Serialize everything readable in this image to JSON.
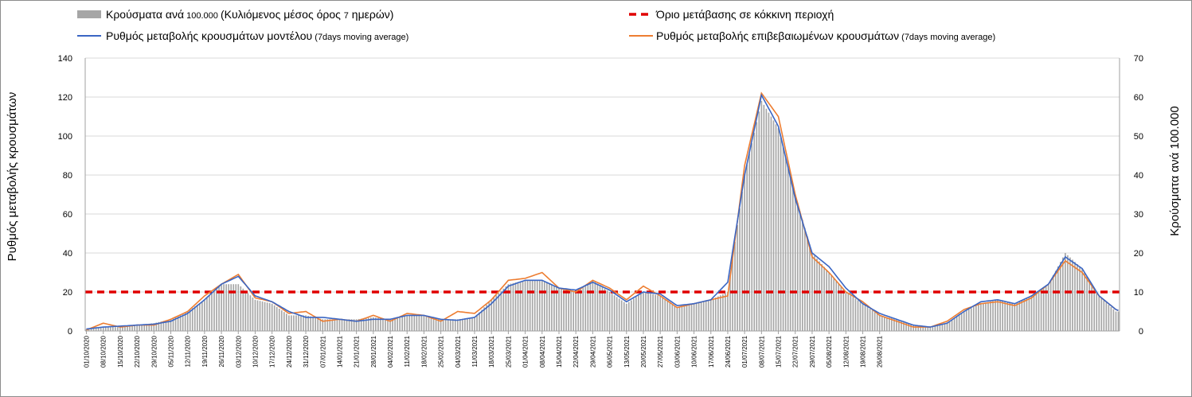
{
  "chart_data": {
    "type": "bar+line",
    "legend": [
      {
        "key": "bars",
        "label": "Κρούσματα ανά",
        "small": " 100.000 ",
        "label2": "(Κυλιόμενος μέσος όρος ",
        "small2": "7",
        "label3": " ημερών)",
        "color": "#a6a6a6"
      },
      {
        "key": "threshold",
        "label": "Όριο μετάβασης σε κόκκινη περιοχή",
        "color": "#e00000"
      },
      {
        "key": "model",
        "label": "Ρυθμός μεταβολής κρουσμάτων μοντέλου",
        "small": " (7days moving average)",
        "color": "#3a66c4"
      },
      {
        "key": "confirmed",
        "label": "Ρυθμός μεταβολής επιβεβαιωμένων κρουσμάτων",
        "small": " (7days moving average)",
        "color": "#ed7d31"
      }
    ],
    "ylabel_left": "Ρυθμός μεταβολής κρουσμάτων",
    "ylabel_right": "Κρούσματα ανά 100.000",
    "ylim_left": [
      0,
      140
    ],
    "ylim_right": [
      0,
      70
    ],
    "yticks_left": [
      "0",
      "20",
      "40",
      "60",
      "80",
      "100",
      "120",
      "140"
    ],
    "yticks_right": [
      "0",
      "10",
      "20",
      "30",
      "40",
      "50",
      "60",
      "70"
    ],
    "threshold_left": 20,
    "start_date": "2020-10-01",
    "days": 365,
    "x_tick_labels": [
      "01/10/2020",
      "08/10/2020",
      "15/10/2020",
      "22/10/2020",
      "29/10/2020",
      "05/11/2020",
      "12/11/2020",
      "19/11/2020",
      "26/11/2020",
      "03/12/2020",
      "10/12/2020",
      "17/12/2020",
      "24/12/2020",
      "31/12/2020",
      "07/01/2021",
      "14/01/2021",
      "21/01/2021",
      "28/01/2021",
      "04/02/2021",
      "11/02/2021",
      "18/02/2021",
      "25/02/2021",
      "04/03/2021",
      "11/03/2021",
      "18/03/2021",
      "25/03/2021",
      "01/04/2021",
      "08/04/2021",
      "15/04/2021",
      "22/04/2021",
      "29/04/2021",
      "06/05/2021",
      "13/05/2021",
      "20/05/2021",
      "27/05/2021",
      "03/06/2021",
      "10/06/2021",
      "17/06/2021",
      "24/06/2021",
      "01/07/2021",
      "08/07/2021",
      "15/07/2021",
      "22/07/2021",
      "29/07/2021",
      "05/08/2021",
      "12/08/2021",
      "19/08/2021",
      "26/08/2021"
    ],
    "model_keypoints": [
      [
        0,
        1
      ],
      [
        7,
        2
      ],
      [
        14,
        2.5
      ],
      [
        21,
        3
      ],
      [
        28,
        3.5
      ],
      [
        35,
        5
      ],
      [
        42,
        9
      ],
      [
        49,
        16
      ],
      [
        56,
        24
      ],
      [
        63,
        28
      ],
      [
        70,
        18
      ],
      [
        77,
        15
      ],
      [
        84,
        10
      ],
      [
        91,
        7
      ],
      [
        98,
        7
      ],
      [
        105,
        6
      ],
      [
        112,
        5
      ],
      [
        119,
        6
      ],
      [
        126,
        6
      ],
      [
        133,
        8
      ],
      [
        140,
        8
      ],
      [
        147,
        6
      ],
      [
        154,
        5.5
      ],
      [
        161,
        7
      ],
      [
        168,
        14
      ],
      [
        175,
        23
      ],
      [
        182,
        26
      ],
      [
        189,
        26
      ],
      [
        196,
        22
      ],
      [
        203,
        21
      ],
      [
        210,
        25
      ],
      [
        217,
        21
      ],
      [
        224,
        15
      ],
      [
        231,
        20
      ],
      [
        238,
        19
      ],
      [
        245,
        13
      ],
      [
        252,
        14
      ],
      [
        259,
        16
      ],
      [
        266,
        25
      ],
      [
        273,
        80
      ],
      [
        280,
        121
      ],
      [
        287,
        105
      ],
      [
        294,
        68
      ],
      [
        301,
        40
      ],
      [
        308,
        33
      ],
      [
        315,
        22
      ],
      [
        322,
        14
      ],
      [
        329,
        9
      ],
      [
        336,
        6
      ],
      [
        343,
        3
      ],
      [
        350,
        2
      ],
      [
        357,
        4
      ],
      [
        364,
        10
      ],
      [
        371,
        15
      ],
      [
        378,
        16
      ],
      [
        385,
        14
      ],
      [
        392,
        18
      ],
      [
        399,
        24
      ],
      [
        406,
        38
      ],
      [
        413,
        32
      ],
      [
        420,
        18
      ],
      [
        427,
        11
      ],
      [
        429,
        10
      ]
    ],
    "confirmed_keypoints": [
      [
        0,
        0.5
      ],
      [
        7,
        4
      ],
      [
        14,
        2
      ],
      [
        21,
        3
      ],
      [
        28,
        3
      ],
      [
        35,
        6
      ],
      [
        42,
        10
      ],
      [
        49,
        18
      ],
      [
        56,
        24
      ],
      [
        63,
        29
      ],
      [
        70,
        17
      ],
      [
        77,
        15
      ],
      [
        84,
        9
      ],
      [
        91,
        10
      ],
      [
        98,
        5
      ],
      [
        105,
        6
      ],
      [
        112,
        5
      ],
      [
        119,
        8
      ],
      [
        126,
        5
      ],
      [
        133,
        9
      ],
      [
        140,
        8
      ],
      [
        147,
        5
      ],
      [
        154,
        10
      ],
      [
        161,
        9
      ],
      [
        168,
        16
      ],
      [
        175,
        26
      ],
      [
        182,
        27
      ],
      [
        189,
        30
      ],
      [
        196,
        22
      ],
      [
        203,
        20
      ],
      [
        210,
        26
      ],
      [
        217,
        22
      ],
      [
        224,
        16
      ],
      [
        231,
        23
      ],
      [
        238,
        18
      ],
      [
        245,
        12
      ],
      [
        252,
        14
      ],
      [
        259,
        16
      ],
      [
        266,
        18
      ],
      [
        273,
        85
      ],
      [
        280,
        122
      ],
      [
        287,
        110
      ],
      [
        294,
        70
      ],
      [
        301,
        38
      ],
      [
        308,
        30
      ],
      [
        315,
        20
      ],
      [
        322,
        15
      ],
      [
        329,
        8
      ],
      [
        336,
        5
      ],
      [
        343,
        2
      ],
      [
        350,
        2
      ],
      [
        357,
        5
      ],
      [
        364,
        11
      ],
      [
        371,
        14
      ],
      [
        378,
        15
      ],
      [
        385,
        13
      ],
      [
        392,
        17
      ],
      [
        399,
        24
      ],
      [
        406,
        36
      ],
      [
        413,
        30
      ],
      [
        420,
        18
      ],
      [
        427,
        11
      ],
      [
        429,
        10
      ]
    ],
    "bars_keypoints": [
      [
        0,
        0.5
      ],
      [
        7,
        1
      ],
      [
        14,
        1
      ],
      [
        21,
        1.5
      ],
      [
        28,
        2
      ],
      [
        35,
        3
      ],
      [
        42,
        5
      ],
      [
        49,
        8
      ],
      [
        56,
        12
      ],
      [
        63,
        12
      ],
      [
        70,
        8
      ],
      [
        77,
        7
      ],
      [
        84,
        4
      ],
      [
        91,
        4
      ],
      [
        98,
        3
      ],
      [
        105,
        3
      ],
      [
        112,
        3
      ],
      [
        119,
        3.5
      ],
      [
        126,
        3
      ],
      [
        133,
        4
      ],
      [
        140,
        4
      ],
      [
        147,
        3
      ],
      [
        154,
        3
      ],
      [
        161,
        3.5
      ],
      [
        168,
        8
      ],
      [
        175,
        12
      ],
      [
        182,
        13
      ],
      [
        189,
        13
      ],
      [
        196,
        11
      ],
      [
        203,
        10
      ],
      [
        210,
        13
      ],
      [
        217,
        10
      ],
      [
        224,
        7
      ],
      [
        231,
        10
      ],
      [
        238,
        9
      ],
      [
        245,
        6
      ],
      [
        252,
        7
      ],
      [
        259,
        8
      ],
      [
        266,
        10
      ],
      [
        273,
        40
      ],
      [
        280,
        59
      ],
      [
        287,
        52
      ],
      [
        294,
        35
      ],
      [
        301,
        20
      ],
      [
        308,
        15
      ],
      [
        315,
        10
      ],
      [
        322,
        7
      ],
      [
        329,
        4
      ],
      [
        336,
        3
      ],
      [
        343,
        1.5
      ],
      [
        350,
        1
      ],
      [
        357,
        2
      ],
      [
        364,
        5
      ],
      [
        371,
        7
      ],
      [
        378,
        8
      ],
      [
        385,
        7
      ],
      [
        392,
        9
      ],
      [
        399,
        12
      ],
      [
        406,
        20
      ],
      [
        413,
        16
      ],
      [
        420,
        9
      ],
      [
        427,
        5
      ],
      [
        429,
        5
      ]
    ]
  }
}
